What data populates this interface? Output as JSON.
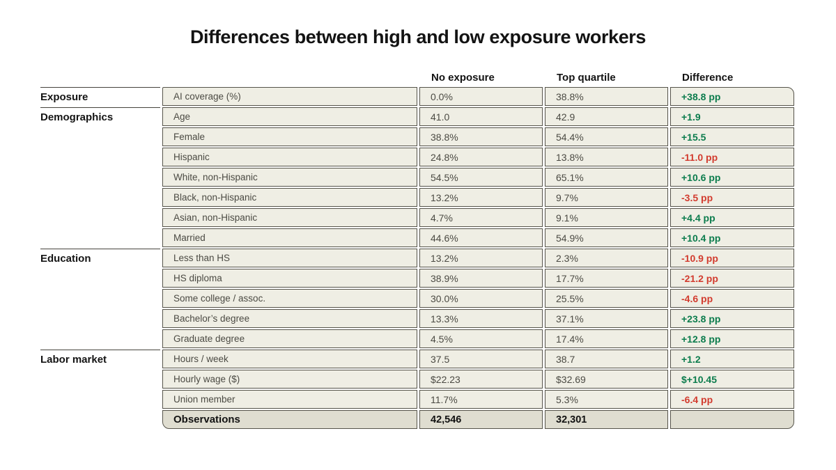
{
  "chart_data": {
    "type": "table",
    "title": "Differences between high and low exposure workers",
    "columns": [
      "No exposure",
      "Top quartile",
      "Difference"
    ],
    "colors": {
      "positive": "#0c7c4d",
      "negative": "#d23b2e",
      "cell_bg": "#efeee4",
      "footer_bg": "#dfddd0",
      "border": "#55534a"
    },
    "groups": [
      {
        "label": "Exposure",
        "rows": [
          {
            "label": "AI coverage (%)",
            "no_exposure": "0.0%",
            "top_quartile": "38.8%",
            "difference": "+38.8 pp",
            "direction": "positive"
          }
        ]
      },
      {
        "label": "Demographics",
        "rows": [
          {
            "label": "Age",
            "no_exposure": "41.0",
            "top_quartile": "42.9",
            "difference": "+1.9",
            "direction": "positive"
          },
          {
            "label": "Female",
            "no_exposure": "38.8%",
            "top_quartile": "54.4%",
            "difference": "+15.5",
            "direction": "positive"
          },
          {
            "label": "Hispanic",
            "no_exposure": "24.8%",
            "top_quartile": "13.8%",
            "difference": "-11.0 pp",
            "direction": "negative"
          },
          {
            "label": "White, non-Hispanic",
            "no_exposure": "54.5%",
            "top_quartile": "65.1%",
            "difference": "+10.6 pp",
            "direction": "positive"
          },
          {
            "label": "Black, non-Hispanic",
            "no_exposure": "13.2%",
            "top_quartile": "9.7%",
            "difference": "-3.5 pp",
            "direction": "negative"
          },
          {
            "label": "Asian, non-Hispanic",
            "no_exposure": "4.7%",
            "top_quartile": "9.1%",
            "difference": "+4.4 pp",
            "direction": "positive"
          },
          {
            "label": "Married",
            "no_exposure": "44.6%",
            "top_quartile": "54.9%",
            "difference": "+10.4 pp",
            "direction": "positive"
          }
        ]
      },
      {
        "label": "Education",
        "rows": [
          {
            "label": "Less than HS",
            "no_exposure": "13.2%",
            "top_quartile": "2.3%",
            "difference": "-10.9 pp",
            "direction": "negative"
          },
          {
            "label": "HS diploma",
            "no_exposure": "38.9%",
            "top_quartile": "17.7%",
            "difference": "-21.2 pp",
            "direction": "negative"
          },
          {
            "label": "Some college / assoc.",
            "no_exposure": "30.0%",
            "top_quartile": "25.5%",
            "difference": "-4.6 pp",
            "direction": "negative"
          },
          {
            "label": "Bachelor’s degree",
            "no_exposure": "13.3%",
            "top_quartile": "37.1%",
            "difference": "+23.8 pp",
            "direction": "positive"
          },
          {
            "label": "Graduate degree",
            "no_exposure": "4.5%",
            "top_quartile": "17.4%",
            "difference": "+12.8 pp",
            "direction": "positive"
          }
        ]
      },
      {
        "label": "Labor market",
        "rows": [
          {
            "label": "Hours / week",
            "no_exposure": "37.5",
            "top_quartile": "38.7",
            "difference": "+1.2",
            "direction": "positive"
          },
          {
            "label": "Hourly wage ($)",
            "no_exposure": "$22.23",
            "top_quartile": "$32.69",
            "difference": "$+10.45",
            "direction": "positive"
          },
          {
            "label": "Union member",
            "no_exposure": "11.7%",
            "top_quartile": "5.3%",
            "difference": "-6.4 pp",
            "direction": "negative"
          }
        ]
      }
    ],
    "footer": {
      "label": "Observations",
      "no_exposure": "42,546",
      "top_quartile": "32,301",
      "difference": ""
    }
  }
}
